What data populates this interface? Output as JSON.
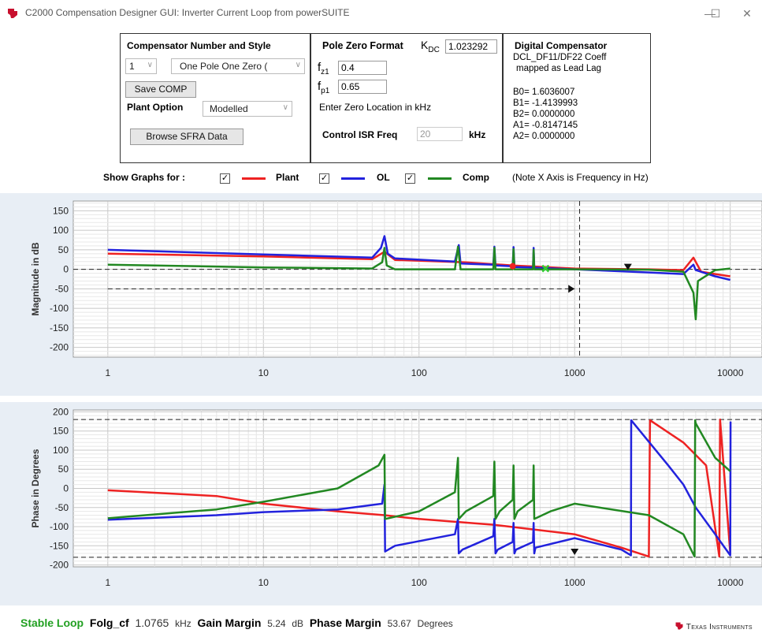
{
  "window": {
    "title": "C2000 Compensation Designer GUI: Inverter Current Loop from powerSUITE",
    "minimize": "—",
    "maximize": "☐",
    "close": "✕"
  },
  "compensator": {
    "header": "Compensator Number and Style",
    "number": "1",
    "style": "One Pole One Zero (",
    "save_label": "Save COMP",
    "plant_option_label": "Plant Option",
    "plant_option_value": "Modelled",
    "browse_label": "Browse SFRA Data"
  },
  "pole_zero": {
    "header": "Pole Zero Format",
    "kdc_label": "K",
    "kdc_sub": "DC",
    "kdc_value": "1.023292",
    "fz1_label": "f",
    "fz1_sub": "z1",
    "fz1_value": "0.4",
    "fp1_label": "f",
    "fp1_sub": "p1",
    "fp1_value": "0.65",
    "hint": "Enter Zero Location in kHz",
    "isr_label": "Control ISR Freq",
    "isr_value": "20",
    "isr_unit": "kHz"
  },
  "digital": {
    "header": "Digital Compensator",
    "line1": "DCL_DF11/DF22 Coeff",
    "line2": "mapped as Lead Lag",
    "b0": "B0= 1.6036007",
    "b1": "B1= -1.4139993",
    "b2": "B2= 0.0000000",
    "a1": "A1= -0.8147145",
    "a2": "A2= 0.0000000"
  },
  "legend": {
    "show_label": "Show Graphs for :",
    "plant_label": "Plant",
    "ol_label": "OL",
    "comp_label": "Comp",
    "note": "(Note X Axis is Frequency in Hz)",
    "check": "✓",
    "colors": {
      "plant": "#ee2222",
      "ol": "#2222dd",
      "comp": "#228822"
    }
  },
  "status": {
    "stable": "Stable Loop",
    "folg_label": "Folg_cf",
    "folg_value": "1.0765",
    "folg_unit": "kHz",
    "gm_label": "Gain Margin",
    "gm_value": "5.24",
    "gm_unit": "dB",
    "pm_label": "Phase Margin",
    "pm_value": "53.67",
    "pm_unit": "Degrees",
    "brand": "Texas Instruments"
  },
  "chart_data": [
    {
      "type": "line",
      "ylabel": "Magnitude in dB",
      "xscale": "log",
      "xlim": [
        0.6,
        16000
      ],
      "ylim": [
        -225,
        175
      ],
      "xticks": [
        1,
        10,
        100,
        1000,
        10000
      ],
      "xticklabels": [
        "1",
        "10",
        "100",
        "1000",
        "10000"
      ],
      "yticks": [
        150,
        100,
        50,
        0,
        -50,
        -100,
        -150,
        -200
      ],
      "grid": true,
      "series": [
        {
          "name": "Plant",
          "color": "#ee2222",
          "points": [
            [
              1,
              40
            ],
            [
              10,
              33
            ],
            [
              50,
              26
            ],
            [
              60,
              45
            ],
            [
              70,
              24
            ],
            [
              200,
              18
            ],
            [
              400,
              10
            ],
            [
              1000,
              2
            ],
            [
              3000,
              0
            ],
            [
              5000,
              -2
            ],
            [
              5800,
              30
            ],
            [
              6500,
              -6
            ],
            [
              8000,
              -12
            ],
            [
              10000,
              -18
            ]
          ]
        },
        {
          "name": "OL",
          "color": "#2222dd",
          "points": [
            [
              1,
              50
            ],
            [
              10,
              38
            ],
            [
              50,
              30
            ],
            [
              57,
              55
            ],
            [
              60,
              85
            ],
            [
              63,
              40
            ],
            [
              70,
              28
            ],
            [
              170,
              20
            ],
            [
              180,
              62
            ],
            [
              185,
              15
            ],
            [
              300,
              12
            ],
            [
              305,
              58
            ],
            [
              310,
              10
            ],
            [
              400,
              8
            ],
            [
              405,
              57
            ],
            [
              410,
              6
            ],
            [
              540,
              5
            ],
            [
              545,
              55
            ],
            [
              550,
              4
            ],
            [
              1000,
              0
            ],
            [
              3000,
              -8
            ],
            [
              5000,
              -12
            ],
            [
              5800,
              12
            ],
            [
              6000,
              -2
            ],
            [
              8000,
              -18
            ],
            [
              10000,
              -27
            ]
          ]
        },
        {
          "name": "Comp",
          "color": "#228822",
          "points": [
            [
              1,
              12
            ],
            [
              10,
              5
            ],
            [
              50,
              2
            ],
            [
              58,
              18
            ],
            [
              60,
              55
            ],
            [
              62,
              10
            ],
            [
              70,
              0
            ],
            [
              170,
              0
            ],
            [
              178,
              58
            ],
            [
              185,
              0
            ],
            [
              300,
              0
            ],
            [
              305,
              55
            ],
            [
              310,
              0
            ],
            [
              400,
              0
            ],
            [
              405,
              52
            ],
            [
              410,
              0
            ],
            [
              540,
              0
            ],
            [
              545,
              50
            ],
            [
              550,
              0
            ],
            [
              1000,
              0
            ],
            [
              3000,
              -1
            ],
            [
              5000,
              -6
            ],
            [
              5800,
              -60
            ],
            [
              6000,
              -128
            ],
            [
              6200,
              -30
            ],
            [
              8000,
              -2
            ],
            [
              10000,
              2
            ]
          ]
        }
      ],
      "markers": [
        {
          "kind": "dot",
          "x": 400,
          "y": 8,
          "color": "#ee2222"
        },
        {
          "kind": "x",
          "x": 650,
          "y": 2,
          "color": "#33cc33"
        },
        {
          "kind": "tri",
          "x": 2200,
          "y": 2,
          "color": "#111"
        },
        {
          "kind": "arrow",
          "x": 1000,
          "y": -50,
          "color": "#111"
        }
      ],
      "ref_lines": {
        "hline": 0,
        "dashed_hline": {
          "y": -50,
          "x_from": 1,
          "x_to": 1000
        },
        "vline": 1076.5
      }
    },
    {
      "type": "line",
      "ylabel": "Phase in Degrees",
      "xscale": "log",
      "xlim": [
        0.6,
        16000
      ],
      "ylim": [
        -205,
        205
      ],
      "xticks": [
        1,
        10,
        100,
        1000,
        10000
      ],
      "xticklabels": [
        "1",
        "10",
        "100",
        "1000",
        "10000"
      ],
      "yticks": [
        200,
        150,
        100,
        50,
        0,
        -50,
        -100,
        -150,
        -200
      ],
      "grid": true,
      "series": [
        {
          "name": "Plant",
          "color": "#ee2222",
          "points": [
            [
              1,
              -5
            ],
            [
              5,
              -20
            ],
            [
              10,
              -40
            ],
            [
              30,
              -60
            ],
            [
              60,
              -70
            ],
            [
              100,
              -80
            ],
            [
              300,
              -95
            ],
            [
              1000,
              -120
            ],
            [
              2000,
              -155
            ],
            [
              3000,
              -178
            ],
            [
              3050,
              178
            ],
            [
              5000,
              120
            ],
            [
              7000,
              60
            ],
            [
              8500,
              -178
            ],
            [
              8600,
              180
            ],
            [
              10000,
              -170
            ]
          ]
        },
        {
          "name": "OL",
          "color": "#2222dd",
          "points": [
            [
              1,
              -82
            ],
            [
              5,
              -70
            ],
            [
              10,
              -62
            ],
            [
              30,
              -55
            ],
            [
              58,
              -40
            ],
            [
              60,
              10
            ],
            [
              60.5,
              -165
            ],
            [
              70,
              -150
            ],
            [
              170,
              -120
            ],
            [
              178,
              -80
            ],
            [
              180,
              -170
            ],
            [
              190,
              -160
            ],
            [
              300,
              -125
            ],
            [
              305,
              -80
            ],
            [
              310,
              -170
            ],
            [
              320,
              -160
            ],
            [
              400,
              -140
            ],
            [
              405,
              -90
            ],
            [
              410,
              -170
            ],
            [
              420,
              -160
            ],
            [
              540,
              -140
            ],
            [
              545,
              -90
            ],
            [
              550,
              -170
            ],
            [
              560,
              -155
            ],
            [
              1000,
              -130
            ],
            [
              2000,
              -160
            ],
            [
              2300,
              -175
            ],
            [
              2310,
              178
            ],
            [
              4000,
              60
            ],
            [
              5000,
              10
            ],
            [
              6000,
              -50
            ],
            [
              8000,
              -120
            ],
            [
              10000,
              -175
            ],
            [
              10050,
              175
            ]
          ]
        },
        {
          "name": "Comp",
          "color": "#228822",
          "points": [
            [
              1,
              -78
            ],
            [
              5,
              -55
            ],
            [
              10,
              -35
            ],
            [
              30,
              0
            ],
            [
              55,
              60
            ],
            [
              60,
              88
            ],
            [
              60.5,
              -80
            ],
            [
              100,
              -60
            ],
            [
              170,
              -10
            ],
            [
              178,
              80
            ],
            [
              180,
              -80
            ],
            [
              200,
              -60
            ],
            [
              300,
              -20
            ],
            [
              305,
              70
            ],
            [
              310,
              -80
            ],
            [
              330,
              -60
            ],
            [
              400,
              -30
            ],
            [
              405,
              60
            ],
            [
              410,
              -80
            ],
            [
              430,
              -60
            ],
            [
              540,
              -30
            ],
            [
              545,
              60
            ],
            [
              550,
              -80
            ],
            [
              700,
              -60
            ],
            [
              1000,
              -40
            ],
            [
              3000,
              -70
            ],
            [
              5000,
              -120
            ],
            [
              5900,
              -178
            ],
            [
              5950,
              178
            ],
            [
              6000,
              170
            ],
            [
              8000,
              80
            ],
            [
              10000,
              45
            ]
          ]
        }
      ],
      "markers": [
        {
          "kind": "arrow-down",
          "x": 1000,
          "y": -170,
          "color": "#111"
        }
      ],
      "ref_lines": {
        "dashed_hlines": [
          180,
          -180
        ]
      }
    }
  ]
}
